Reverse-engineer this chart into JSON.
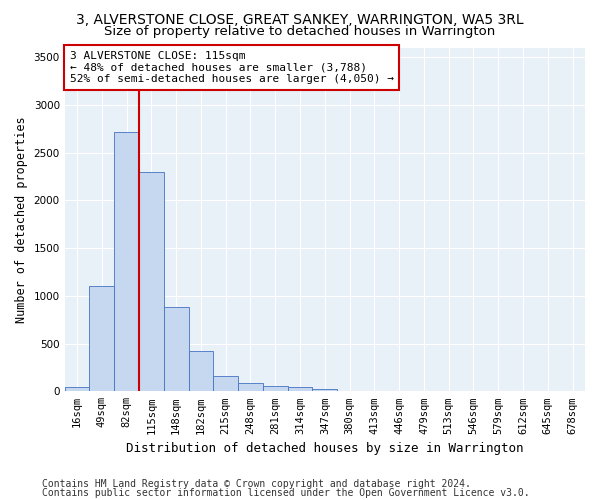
{
  "title1": "3, ALVERSTONE CLOSE, GREAT SANKEY, WARRINGTON, WA5 3RL",
  "title2": "Size of property relative to detached houses in Warrington",
  "xlabel": "Distribution of detached houses by size in Warrington",
  "ylabel": "Number of detached properties",
  "categories": [
    "16sqm",
    "49sqm",
    "82sqm",
    "115sqm",
    "148sqm",
    "182sqm",
    "215sqm",
    "248sqm",
    "281sqm",
    "314sqm",
    "347sqm",
    "380sqm",
    "413sqm",
    "446sqm",
    "479sqm",
    "513sqm",
    "546sqm",
    "579sqm",
    "612sqm",
    "645sqm",
    "678sqm"
  ],
  "values": [
    50,
    1100,
    2720,
    2300,
    880,
    420,
    160,
    90,
    55,
    40,
    20,
    8,
    5,
    2,
    1,
    0.5,
    0.5,
    0.5,
    0.5,
    0.5,
    0.5
  ],
  "bar_color": "#c5d8f0",
  "bar_edge_color": "#4472c4",
  "vline_x_idx": 2.5,
  "vline_color": "#cc0000",
  "annotation_line1": "3 ALVERSTONE CLOSE: 115sqm",
  "annotation_line2": "← 48% of detached houses are smaller (3,788)",
  "annotation_line3": "52% of semi-detached houses are larger (4,050) →",
  "annotation_box_color": "#ffffff",
  "annotation_box_edge": "#cc0000",
  "ylim": [
    0,
    3600
  ],
  "yticks": [
    0,
    500,
    1000,
    1500,
    2000,
    2500,
    3000,
    3500
  ],
  "plot_bg_color": "#e8f0f8",
  "footer1": "Contains HM Land Registry data © Crown copyright and database right 2024.",
  "footer2": "Contains public sector information licensed under the Open Government Licence v3.0.",
  "title1_fontsize": 10,
  "title2_fontsize": 9.5,
  "xlabel_fontsize": 9,
  "ylabel_fontsize": 8.5,
  "tick_fontsize": 7.5,
  "annotation_fontsize": 8,
  "footer_fontsize": 7
}
